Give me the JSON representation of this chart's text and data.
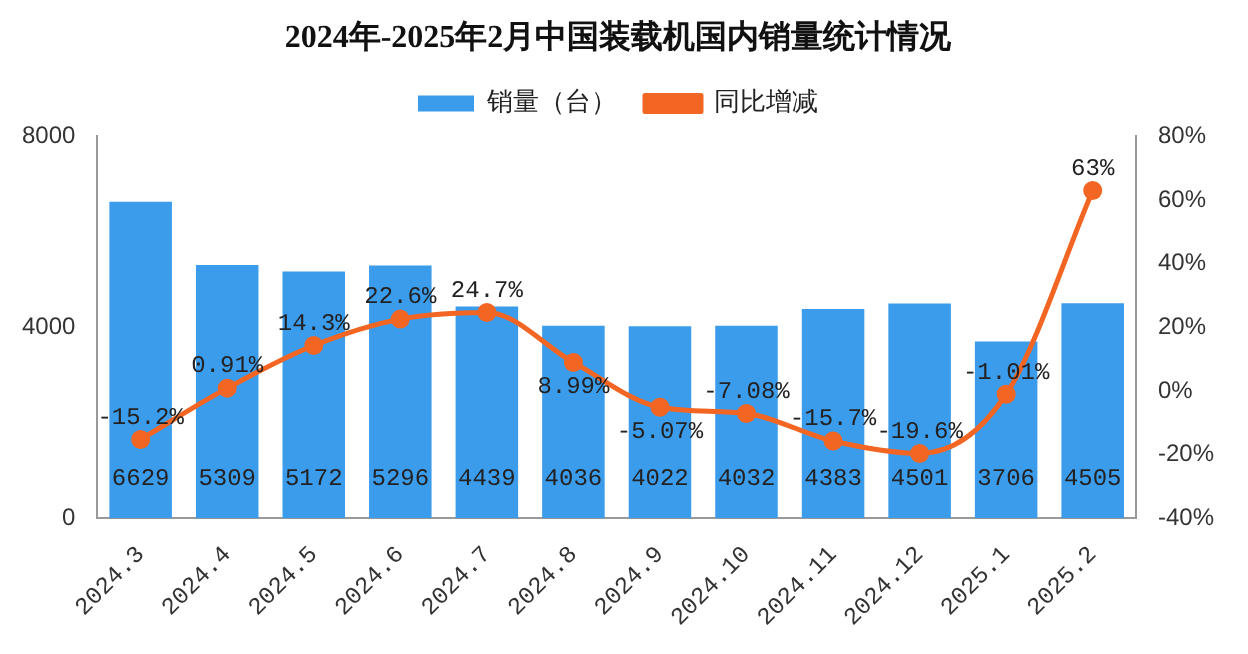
{
  "chart_data": {
    "type": "bar",
    "title": "2024年-2025年2月中国装载机国内销量统计情况",
    "categories": [
      "2024.3",
      "2024.4",
      "2024.5",
      "2024.6",
      "2024.7",
      "2024.8",
      "2024.9",
      "2024.10",
      "2024.11",
      "2024.12",
      "2025.1",
      "2025.2"
    ],
    "series": [
      {
        "name": "销量（台）",
        "color": "#3c9cec",
        "values": [
          6629,
          5309,
          5172,
          5296,
          4439,
          4036,
          4022,
          4032,
          4383,
          4501,
          3706,
          4505
        ],
        "value_labels": [
          "6629",
          "5309",
          "5172",
          "5296",
          "4439",
          "4036",
          "4022",
          "4032",
          "4383",
          "4501",
          "3706",
          "4505"
        ]
      },
      {
        "name": "同比增减",
        "type": "line",
        "axis": "y2",
        "color": "#f26522",
        "values": [
          -15.2,
          0.91,
          14.3,
          22.6,
          24.7,
          8.99,
          -5.07,
          -7.08,
          -15.7,
          -19.6,
          -1.01,
          63
        ],
        "value_labels": [
          "-15.2%",
          "0.91%",
          "14.3%",
          "22.6%",
          "24.7%",
          "8.99%",
          "-5.07%",
          "-7.08%",
          "-15.7%",
          "-19.6%",
          "-1.01%",
          "63%"
        ]
      }
    ],
    "ylim": [
      0,
      8000
    ],
    "yticks": [
      0,
      4000,
      8000
    ],
    "y2lim": [
      -40,
      80
    ],
    "y2ticks": [
      {
        "value": -40,
        "label": "-40%"
      },
      {
        "value": -20,
        "label": "-20%"
      },
      {
        "value": 0,
        "label": "0%"
      },
      {
        "value": 20,
        "label": "20%"
      },
      {
        "value": 40,
        "label": "40%"
      },
      {
        "value": 60,
        "label": "60%"
      },
      {
        "value": 80,
        "label": "80%"
      }
    ],
    "legend": "top",
    "grid": false,
    "marker": "circle",
    "line_style": "solid"
  }
}
